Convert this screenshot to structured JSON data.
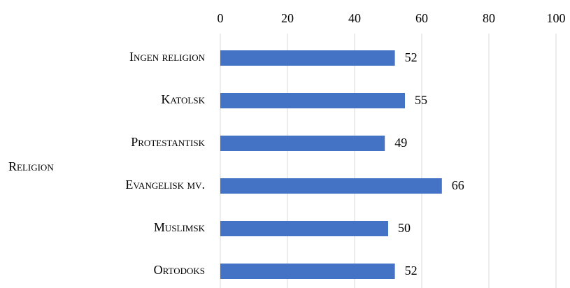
{
  "chart_data": {
    "type": "bar",
    "orientation": "horizontal",
    "y_axis_label": "Religion",
    "categories": [
      "Ingen religion",
      "Katolsk",
      "Protestantisk",
      "Evangelisk mv.",
      "Muslimsk",
      "Ortodoks"
    ],
    "values": [
      52,
      55,
      49,
      66,
      50,
      52
    ],
    "color": "#4472c4",
    "xlim": [
      0,
      100
    ],
    "xticks": [
      0,
      20,
      40,
      60,
      80,
      100
    ],
    "grid": true
  }
}
